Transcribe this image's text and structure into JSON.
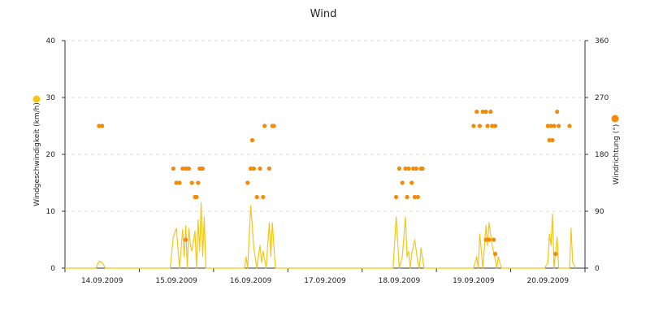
{
  "chart_data": {
    "type": "line",
    "title": "Wind",
    "ylabel": "Windgeschwindigkeit (km/h)",
    "y2label": "Windrichtung (°)",
    "ylim": [
      0,
      40
    ],
    "y2lim": [
      0,
      360
    ],
    "yticks": [
      0,
      10,
      20,
      30,
      40
    ],
    "y2ticks": [
      0,
      90,
      180,
      270,
      360
    ],
    "xlim_hours": [
      0,
      168
    ],
    "xticks": [
      "14.09.2009",
      "15.09.2009",
      "16.09.2009",
      "17.09.2009",
      "18.09.2009",
      "19.09.2009",
      "20.09.2009"
    ],
    "grid": true,
    "colors": {
      "speed": "#f5c518",
      "direction": "#f58a07",
      "speed_marker": "#f5c518",
      "direction_marker": "#f58a07"
    },
    "series": [
      {
        "name": "Windgeschwindigkeit",
        "axis": "left",
        "kind": "line",
        "points": [
          [
            0,
            0
          ],
          [
            10,
            0
          ],
          [
            11,
            1.2
          ],
          [
            12,
            1
          ],
          [
            13,
            0
          ],
          [
            34,
            0
          ],
          [
            35,
            5.5
          ],
          [
            36,
            7
          ],
          [
            37,
            0
          ],
          [
            38,
            6.8
          ],
          [
            38.5,
            2
          ],
          [
            39,
            7.5
          ],
          [
            39.5,
            0
          ],
          [
            40,
            7
          ],
          [
            40.5,
            4
          ],
          [
            41,
            3
          ],
          [
            42,
            6.5
          ],
          [
            42.5,
            0
          ],
          [
            43,
            8.5
          ],
          [
            43.5,
            3
          ],
          [
            44,
            11.5
          ],
          [
            44.5,
            2
          ],
          [
            45,
            9
          ],
          [
            45.5,
            0
          ],
          [
            46,
            0
          ],
          [
            58,
            0
          ],
          [
            58.5,
            2
          ],
          [
            59,
            0
          ],
          [
            60,
            11
          ],
          [
            61,
            3.5
          ],
          [
            62,
            0
          ],
          [
            63,
            4
          ],
          [
            63.5,
            1
          ],
          [
            64,
            3
          ],
          [
            65,
            0
          ],
          [
            66,
            8
          ],
          [
            66.5,
            2
          ],
          [
            67,
            8
          ],
          [
            68,
            0
          ],
          [
            106,
            0
          ],
          [
            107,
            9
          ],
          [
            108,
            0
          ],
          [
            109,
            2
          ],
          [
            110,
            9
          ],
          [
            110.5,
            2
          ],
          [
            111,
            3
          ],
          [
            111.5,
            0
          ],
          [
            112,
            2.5
          ],
          [
            113,
            5
          ],
          [
            113.5,
            3
          ],
          [
            114,
            1
          ],
          [
            114.5,
            0
          ],
          [
            115,
            3.5
          ],
          [
            116,
            0
          ],
          [
            132,
            0
          ],
          [
            133,
            2
          ],
          [
            133.5,
            0
          ],
          [
            134,
            6
          ],
          [
            135,
            0
          ],
          [
            136,
            7.5
          ],
          [
            136.5,
            4
          ],
          [
            137,
            8
          ],
          [
            137.5,
            6
          ],
          [
            138,
            4
          ],
          [
            139,
            1.5
          ],
          [
            139.5,
            0
          ],
          [
            140,
            2
          ],
          [
            141,
            0
          ],
          [
            155,
            0
          ],
          [
            156,
            1
          ],
          [
            156.5,
            6
          ],
          [
            157,
            4
          ],
          [
            157.5,
            9.5
          ],
          [
            158,
            0
          ],
          [
            159,
            5.5
          ],
          [
            159.5,
            0
          ],
          [
            160,
            0
          ],
          [
            163,
            0
          ],
          [
            163.5,
            7
          ],
          [
            164,
            1
          ],
          [
            165,
            0
          ]
        ]
      },
      {
        "name": "Windrichtung",
        "axis": "right",
        "kind": "dots",
        "points": [
          [
            11,
            225
          ],
          [
            12,
            225
          ],
          [
            35,
            157.5
          ],
          [
            36,
            135
          ],
          [
            37,
            135
          ],
          [
            38,
            157.5
          ],
          [
            39,
            157.5
          ],
          [
            40,
            157.5
          ],
          [
            41,
            135
          ],
          [
            42,
            112.5
          ],
          [
            42.5,
            112.5
          ],
          [
            43,
            135
          ],
          [
            43.5,
            157.5
          ],
          [
            44,
            157.5
          ],
          [
            44.5,
            157.5
          ],
          [
            39,
            45
          ],
          [
            59,
            135
          ],
          [
            60,
            157.5
          ],
          [
            60.5,
            202.5
          ],
          [
            61,
            157.5
          ],
          [
            62,
            112.5
          ],
          [
            63,
            157.5
          ],
          [
            64,
            112.5
          ],
          [
            64.5,
            225
          ],
          [
            66,
            157.5
          ],
          [
            67,
            225
          ],
          [
            67.5,
            225
          ],
          [
            107,
            112.5
          ],
          [
            108,
            157.5
          ],
          [
            109,
            135
          ],
          [
            110,
            157.5
          ],
          [
            110.5,
            112.5
          ],
          [
            111,
            157.5
          ],
          [
            112,
            135
          ],
          [
            112.5,
            157.5
          ],
          [
            113,
            112.5
          ],
          [
            113.5,
            157.5
          ],
          [
            114,
            112.5
          ],
          [
            115,
            157.5
          ],
          [
            115.5,
            157.5
          ],
          [
            132,
            225
          ],
          [
            133,
            247.5
          ],
          [
            134,
            225
          ],
          [
            135,
            247.5
          ],
          [
            136,
            247.5
          ],
          [
            136,
            45
          ],
          [
            136.5,
            225
          ],
          [
            137,
            45
          ],
          [
            137.5,
            247.5
          ],
          [
            138,
            225
          ],
          [
            139,
            225
          ],
          [
            138.5,
            45
          ],
          [
            139,
            22.5
          ],
          [
            156,
            225
          ],
          [
            156.5,
            202.5
          ],
          [
            157,
            225
          ],
          [
            157.5,
            202.5
          ],
          [
            158,
            225
          ],
          [
            159,
            247.5
          ],
          [
            159.5,
            225
          ],
          [
            158.5,
            22.5
          ],
          [
            163,
            225
          ]
        ]
      }
    ]
  }
}
